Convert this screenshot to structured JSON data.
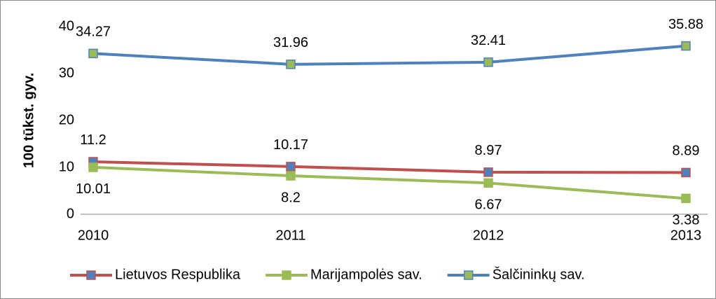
{
  "chart_data": {
    "type": "line",
    "y_label": "100 tūkst. gyv.",
    "categories": [
      "2010",
      "2011",
      "2012",
      "2013"
    ],
    "series": [
      {
        "name": "Lietuvos Respublika",
        "color": "#c0504d",
        "marker_fill": "#4f81bd",
        "values": [
          11.2,
          10.17,
          8.97,
          8.89
        ],
        "label_side": "above"
      },
      {
        "name": "Marijampolės sav.",
        "color": "#9bbb59",
        "marker_fill": "#9bbb59",
        "values": [
          10.01,
          8.2,
          6.67,
          3.38
        ],
        "label_side": "below"
      },
      {
        "name": "Šalčininkų sav.",
        "color": "#4f81bd",
        "marker_fill": "#9bbb59",
        "values": [
          34.27,
          31.96,
          32.41,
          35.88
        ],
        "label_side": "above"
      }
    ],
    "ylim": [
      0,
      40
    ],
    "yticks": [
      0,
      10,
      20,
      30,
      40
    ],
    "grid": false,
    "legend": "bottom"
  }
}
